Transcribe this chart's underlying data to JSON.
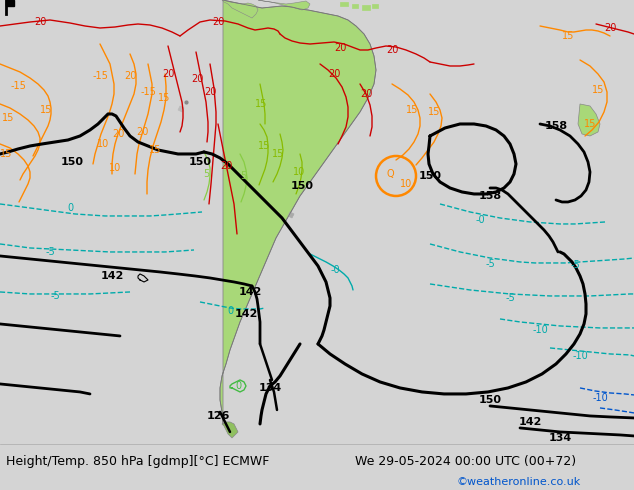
{
  "title_left": "Height/Temp. 850 hPa [gdmp][°C] ECMWF",
  "title_right": "We 29-05-2024 00:00 UTC (00+72)",
  "credit": "©weatheronline.co.uk",
  "bg_color": "#d4d4d4",
  "ocean_color": "#d4d4d4",
  "land_color": "#a8d878",
  "land_dark": "#90c060",
  "bottom_bar_color": "#ffffff",
  "title_color": "#000000",
  "credit_color": "#0055cc",
  "title_fontsize": 9,
  "credit_fontsize": 8,
  "black": "#000000",
  "red": "#cc0000",
  "orange": "#ff8800",
  "dark_orange": "#dd6600",
  "yellow_green": "#88bb00",
  "cyan": "#00aaaa",
  "blue": "#0055cc",
  "green": "#44aa44",
  "gray": "#888888"
}
